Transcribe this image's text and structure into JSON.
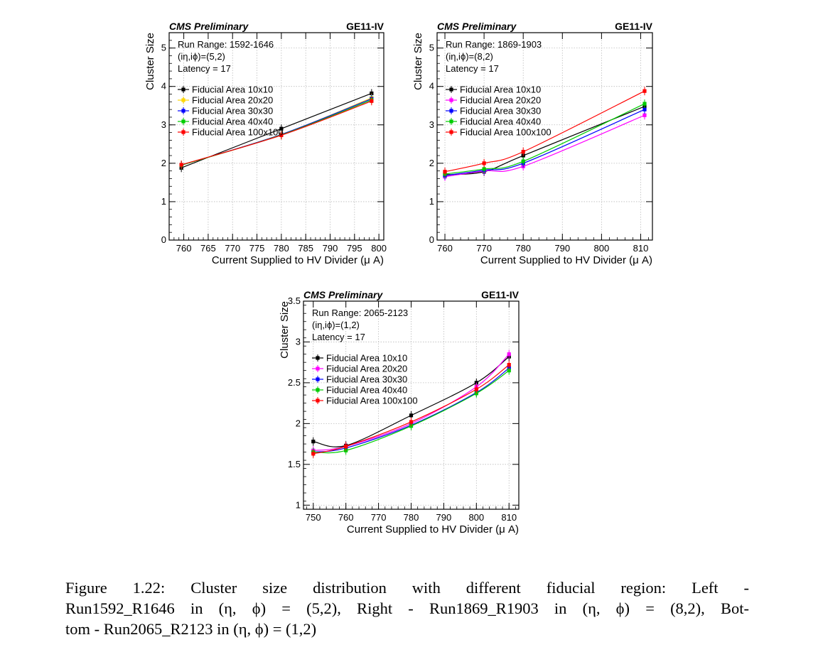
{
  "figure_caption": {
    "line1": "Figure 1.22:  Cluster size distribution with different fiducial region:  Left -",
    "line2": "Run1592_R1646 in (η, ϕ) = (5,2), Right - Run1869_R1903 in (η, ϕ) = (8,2), Bot-",
    "line3": "tom - Run2065_R2123 in (η, ϕ) = (1,2)"
  },
  "series_colors": {
    "Fiducial Area 10x10": "#000000",
    "Fiducial Area 20x20": "#ff00ff",
    "Fiducial Area 20x20 (left panel)": "#ffd700",
    "Fiducial Area 30x30": "#0000ff",
    "Fiducial Area 40x40": "#00cc00",
    "Fiducial Area 100x100": "#ff0000"
  },
  "chart_data": [
    {
      "type": "line",
      "title": "CMS Preliminary",
      "right_label": "GE11-IV",
      "annotations": [
        "Run Range: 1592-1646",
        "(iη,iϕ)=(5,2)",
        "Latency = 17"
      ],
      "xlabel": "Current Supplied to HV Divider (μ A)",
      "ylabel": "Cluster Size",
      "xlim": [
        757,
        801
      ],
      "ylim": [
        0,
        5.4
      ],
      "xticks": [
        760,
        765,
        770,
        775,
        780,
        785,
        790,
        795,
        800
      ],
      "yticks": [
        0,
        1,
        2,
        3,
        4,
        5
      ],
      "grid": true,
      "legend_position": "top-left",
      "x": [
        759.5,
        780,
        798.5
      ],
      "series": [
        {
          "name": "Fiducial Area 10x10",
          "color": "#000000",
          "values": [
            1.88,
            2.9,
            3.82
          ]
        },
        {
          "name": "Fiducial Area 20x20",
          "color": "#ffd700",
          "values": [
            1.95,
            2.75,
            3.7
          ]
        },
        {
          "name": "Fiducial Area 30x30",
          "color": "#0000ff",
          "values": [
            1.95,
            2.75,
            3.68
          ]
        },
        {
          "name": "Fiducial Area 40x40",
          "color": "#00cc00",
          "values": [
            1.95,
            2.74,
            3.65
          ]
        },
        {
          "name": "Fiducial Area 100x100",
          "color": "#ff0000",
          "values": [
            1.96,
            2.73,
            3.62
          ]
        }
      ]
    },
    {
      "type": "line",
      "title": "CMS Preliminary",
      "right_label": "GE11-IV",
      "annotations": [
        "Run Range: 1869-1903",
        "(iη,iϕ)=(8,2)",
        "Latency = 17"
      ],
      "xlabel": "Current Supplied to HV Divider (μ A)",
      "ylabel": "Cluster Size",
      "xlim": [
        758,
        813
      ],
      "ylim": [
        0,
        5.4
      ],
      "xticks": [
        760,
        770,
        780,
        790,
        800,
        810
      ],
      "yticks": [
        0,
        1,
        2,
        3,
        4,
        5
      ],
      "grid": true,
      "legend_position": "top-left",
      "x": [
        760,
        770,
        780,
        811
      ],
      "series": [
        {
          "name": "Fiducial Area 10x10",
          "color": "#000000",
          "values": [
            1.7,
            1.78,
            2.2,
            3.48
          ]
        },
        {
          "name": "Fiducial Area 20x20",
          "color": "#ff00ff",
          "values": [
            1.65,
            1.8,
            1.92,
            3.25
          ]
        },
        {
          "name": "Fiducial Area 30x30",
          "color": "#0000ff",
          "values": [
            1.68,
            1.82,
            2.0,
            3.4
          ]
        },
        {
          "name": "Fiducial Area 40x40",
          "color": "#00cc00",
          "values": [
            1.72,
            1.85,
            2.05,
            3.55
          ]
        },
        {
          "name": "Fiducial Area 100x100",
          "color": "#ff0000",
          "values": [
            1.78,
            2.0,
            2.3,
            3.88
          ]
        }
      ]
    },
    {
      "type": "line",
      "title": "CMS Preliminary",
      "right_label": "GE11-IV",
      "annotations": [
        "Run Range: 2065-2123",
        "(iη,iϕ)=(1,2)",
        "Latency = 17"
      ],
      "xlabel": "Current Supplied to HV Divider (μ A)",
      "ylabel": "Cluster Size",
      "xlim": [
        747,
        813
      ],
      "ylim": [
        0.95,
        3.5
      ],
      "xticks": [
        750,
        760,
        770,
        780,
        790,
        800,
        810
      ],
      "yticks": [
        1,
        1.5,
        2,
        2.5,
        3,
        3.5
      ],
      "ytick_labels": [
        "1",
        "1.5",
        "2",
        "2.5",
        "3",
        "3.5"
      ],
      "grid": true,
      "legend_position": "top-left",
      "x": [
        750,
        760,
        780,
        800,
        810
      ],
      "series": [
        {
          "name": "Fiducial Area 10x10",
          "color": "#000000",
          "values": [
            1.78,
            1.73,
            2.1,
            2.5,
            2.82
          ]
        },
        {
          "name": "Fiducial Area 20x20",
          "color": "#ff00ff",
          "values": [
            1.67,
            1.72,
            2.0,
            2.45,
            2.85
          ]
        },
        {
          "name": "Fiducial Area 30x30",
          "color": "#0000ff",
          "values": [
            1.65,
            1.7,
            1.98,
            2.38,
            2.68
          ]
        },
        {
          "name": "Fiducial Area 40x40",
          "color": "#00cc00",
          "values": [
            1.65,
            1.67,
            1.97,
            2.37,
            2.65
          ]
        },
        {
          "name": "Fiducial Area 100x100",
          "color": "#ff0000",
          "values": [
            1.63,
            1.72,
            2.02,
            2.42,
            2.72
          ]
        }
      ]
    }
  ]
}
